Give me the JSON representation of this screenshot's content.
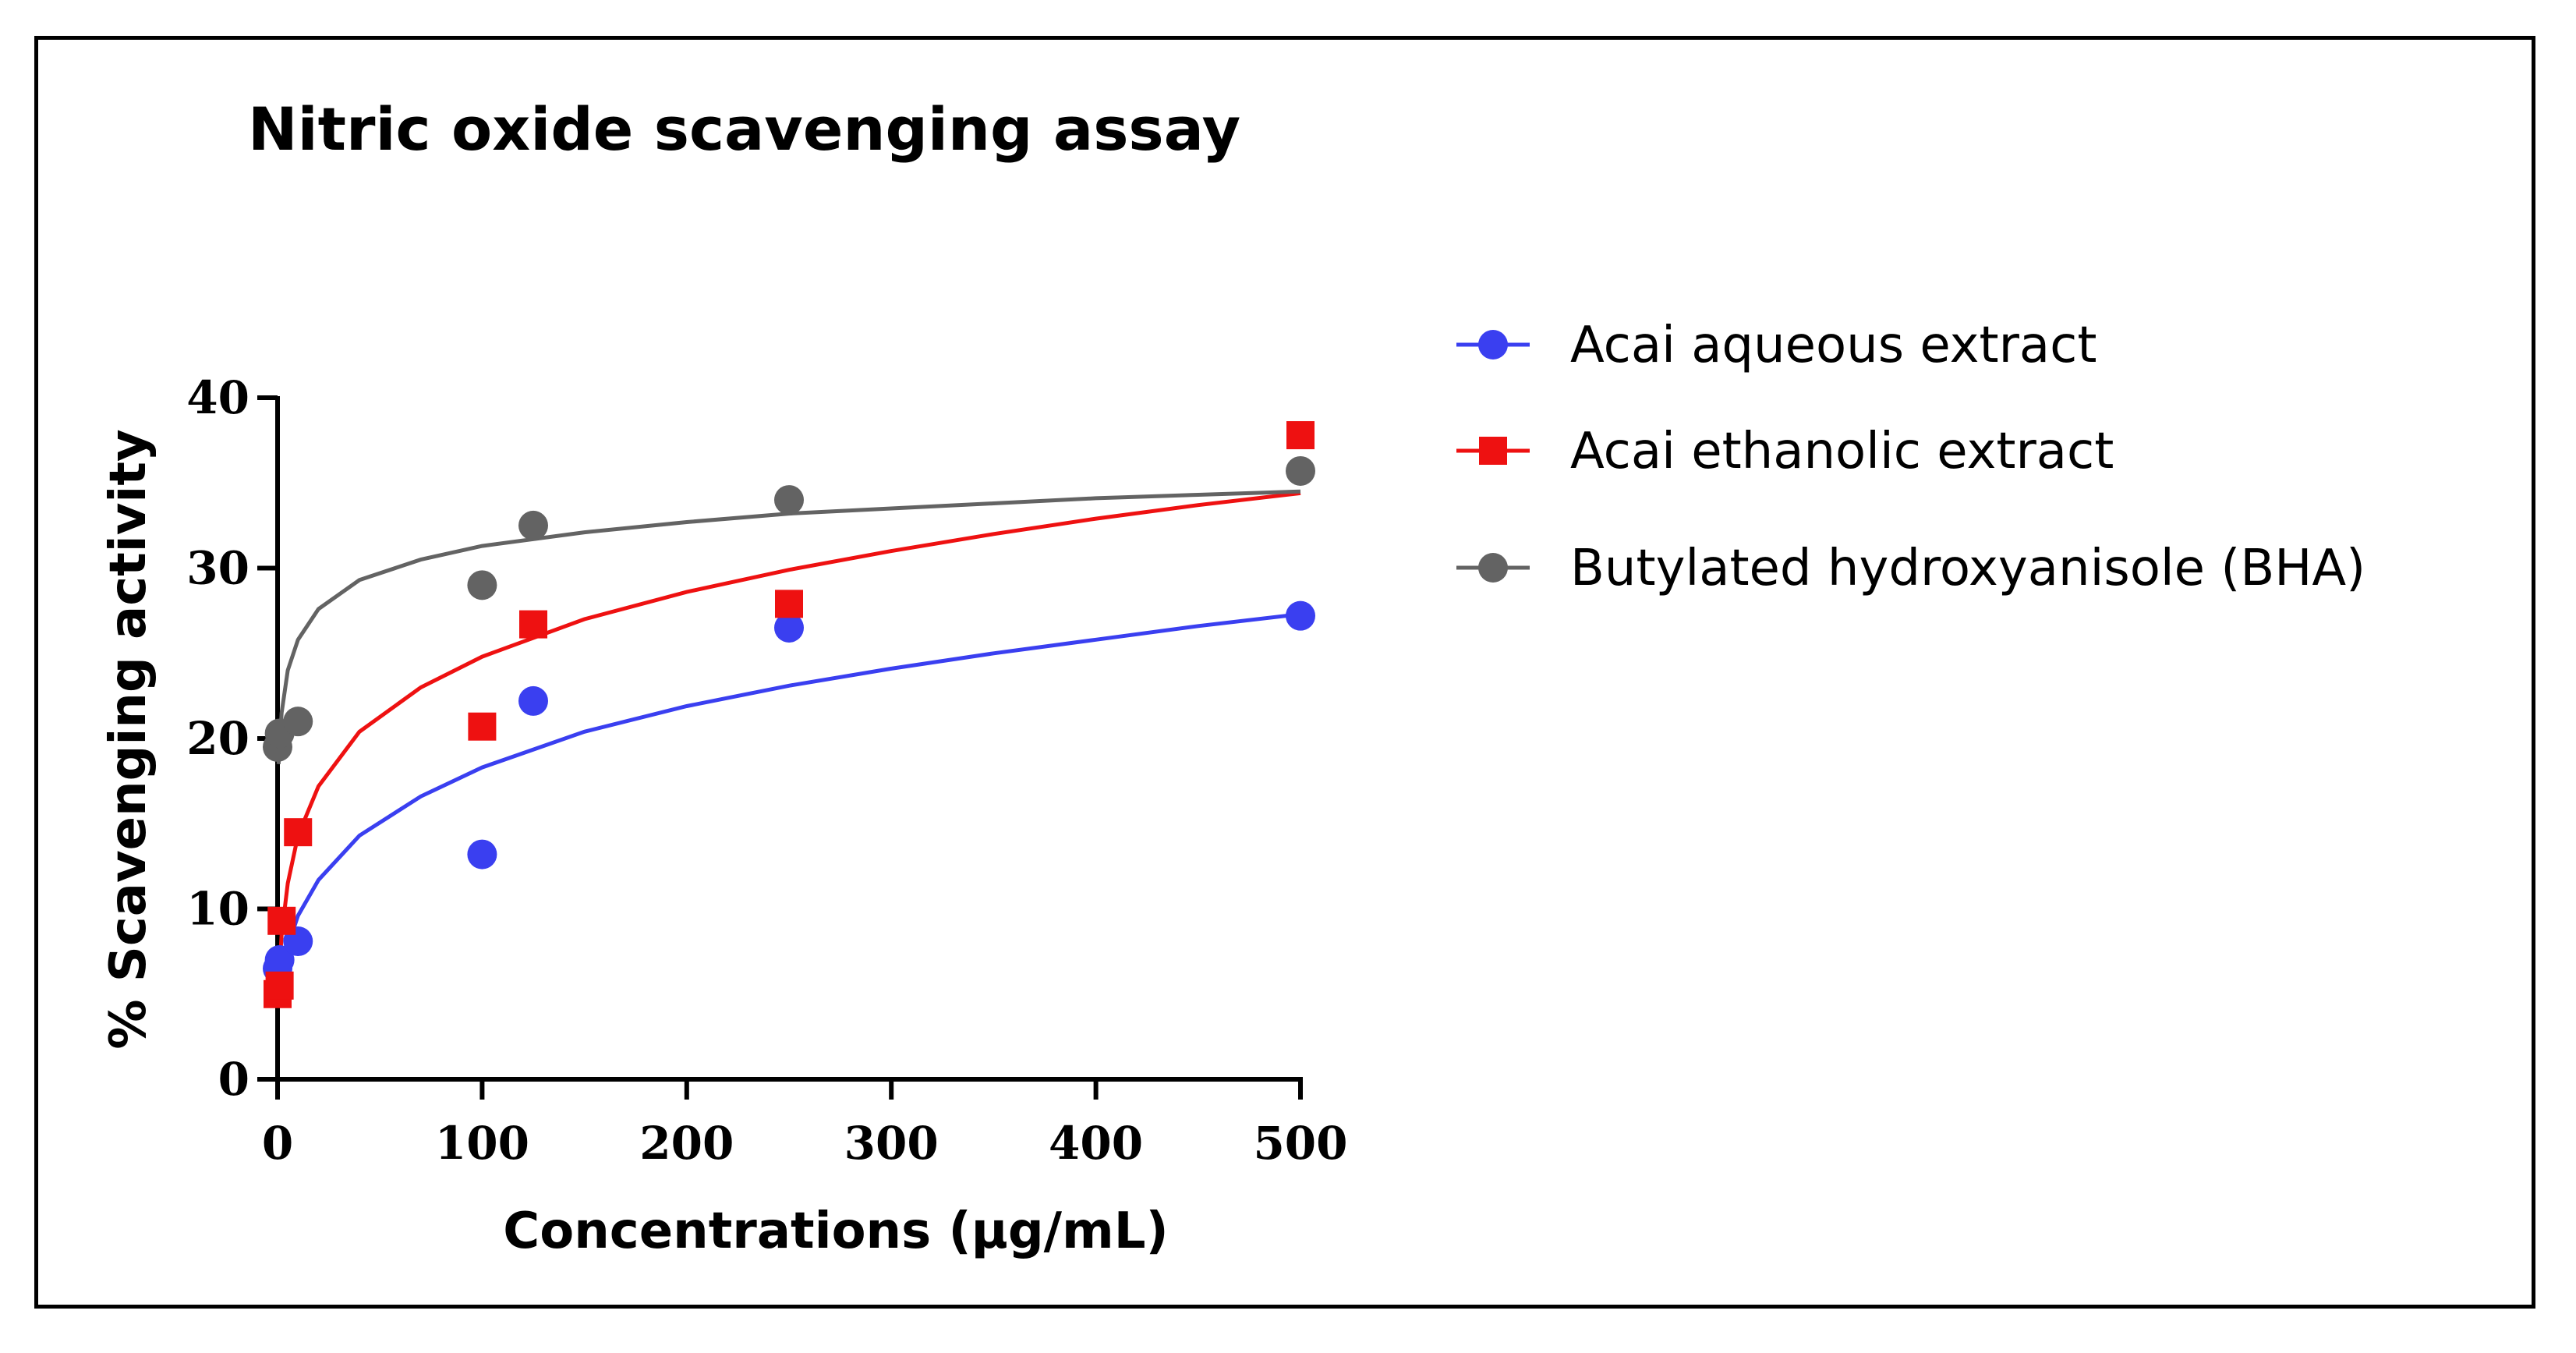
{
  "chart_data": {
    "type": "scatter",
    "title": "Nitric oxide scavenging assay",
    "xlabel": "Concentrations (µg/mL)",
    "ylabel": "% Scavenging activity",
    "xlim": [
      0,
      500
    ],
    "ylim": [
      0,
      40
    ],
    "xticks": [
      "0",
      "100",
      "200",
      "300",
      "400",
      "500"
    ],
    "yticks": [
      "0",
      "10",
      "20",
      "30",
      "40"
    ],
    "grid": false,
    "legend_position": "right",
    "series": [
      {
        "name": "Acai aqueous extract",
        "color": "#3a3ff0",
        "marker": "circle",
        "points": [
          [
            0,
            6.5
          ],
          [
            1,
            7.0
          ],
          [
            10,
            8.1
          ],
          [
            100,
            13.2
          ],
          [
            125,
            22.2
          ],
          [
            250,
            26.5
          ],
          [
            500,
            27.2
          ]
        ],
        "fit": [
          [
            0.5,
            4.2
          ],
          [
            2,
            6.0
          ],
          [
            5,
            7.8
          ],
          [
            10,
            9.6
          ],
          [
            20,
            11.7
          ],
          [
            40,
            14.3
          ],
          [
            70,
            16.6
          ],
          [
            100,
            18.3
          ],
          [
            150,
            20.4
          ],
          [
            200,
            21.9
          ],
          [
            250,
            23.1
          ],
          [
            300,
            24.1
          ],
          [
            350,
            25.0
          ],
          [
            400,
            25.8
          ],
          [
            450,
            26.6
          ],
          [
            500,
            27.3
          ]
        ]
      },
      {
        "name": "Acai ethanolic extract",
        "color": "#ee1111",
        "marker": "square",
        "points": [
          [
            0,
            5.0
          ],
          [
            1,
            5.5
          ],
          [
            2,
            9.3
          ],
          [
            10,
            14.5
          ],
          [
            100,
            20.7
          ],
          [
            125,
            26.7
          ],
          [
            250,
            27.9
          ],
          [
            500,
            37.8
          ]
        ],
        "fit": [
          [
            0.5,
            5.5
          ],
          [
            2,
            8.5
          ],
          [
            5,
            11.5
          ],
          [
            10,
            14.3
          ],
          [
            20,
            17.2
          ],
          [
            40,
            20.4
          ],
          [
            70,
            23.0
          ],
          [
            100,
            24.8
          ],
          [
            150,
            27.0
          ],
          [
            200,
            28.6
          ],
          [
            250,
            29.9
          ],
          [
            300,
            31.0
          ],
          [
            350,
            32.0
          ],
          [
            400,
            32.9
          ],
          [
            450,
            33.7
          ],
          [
            500,
            34.4
          ]
        ]
      },
      {
        "name": "Butylated hydroxyanisole (BHA)",
        "color": "#636363",
        "marker": "circle",
        "points": [
          [
            0,
            19.5
          ],
          [
            1,
            20.3
          ],
          [
            10,
            21.0
          ],
          [
            100,
            29.0
          ],
          [
            125,
            32.5
          ],
          [
            250,
            34.0
          ],
          [
            500,
            35.7
          ]
        ],
        "fit": [
          [
            0.5,
            18.5
          ],
          [
            2,
            21.5
          ],
          [
            5,
            24.0
          ],
          [
            10,
            25.8
          ],
          [
            20,
            27.6
          ],
          [
            40,
            29.3
          ],
          [
            70,
            30.5
          ],
          [
            100,
            31.3
          ],
          [
            150,
            32.1
          ],
          [
            200,
            32.7
          ],
          [
            250,
            33.2
          ],
          [
            300,
            33.5
          ],
          [
            350,
            33.8
          ],
          [
            400,
            34.1
          ],
          [
            450,
            34.3
          ],
          [
            500,
            34.5
          ]
        ]
      }
    ]
  }
}
